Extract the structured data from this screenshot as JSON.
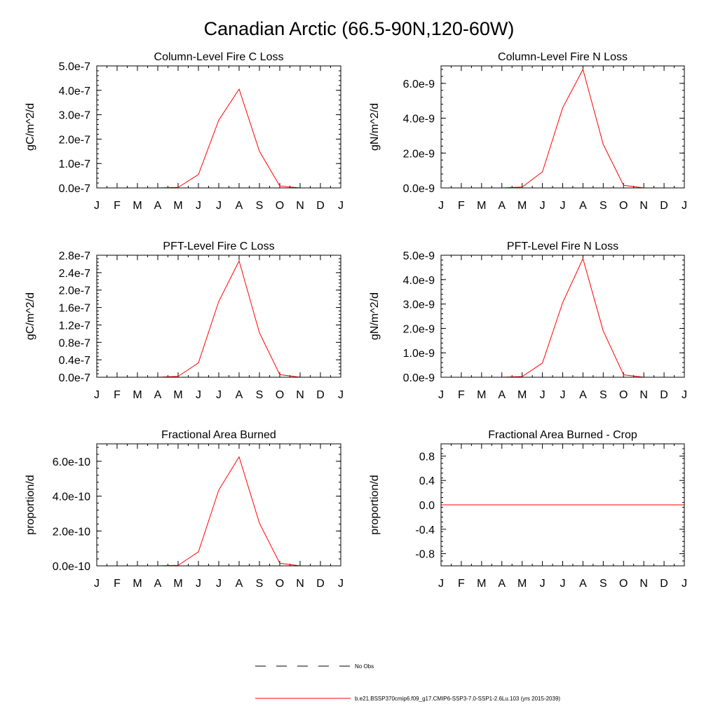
{
  "figure": {
    "title": "Canadian Arctic (66.5-90N,120-60W)"
  },
  "month_labels": [
    "J",
    "F",
    "M",
    "A",
    "M",
    "J",
    "J",
    "A",
    "S",
    "O",
    "N",
    "D",
    "J"
  ],
  "chart_data": [
    {
      "type": "line",
      "title": "Column-Level Fire C Loss",
      "ylabel": "gC/m^2/d",
      "ylim": [
        0,
        5e-07
      ],
      "yticks": [
        0,
        1e-07,
        2e-07,
        3e-07,
        4e-07,
        5e-07
      ],
      "ytick_labels": [
        "0.0e-7",
        "1.0e-7",
        "2.0e-7",
        "3.0e-7",
        "4.0e-7",
        "5.0e-7"
      ],
      "series": [
        {
          "color": "#ff0000",
          "values": [
            0,
            0,
            0,
            0,
            2e-09,
            5.5e-08,
            2.78e-07,
            4.05e-07,
            1.5e-07,
            8e-09,
            0,
            0,
            0
          ]
        }
      ]
    },
    {
      "type": "line",
      "title": "Column-Level Fire N Loss",
      "ylabel": "gN/m^2/d",
      "ylim": [
        0,
        7e-09
      ],
      "yticks": [
        0,
        2e-09,
        4e-09,
        6e-09
      ],
      "ytick_labels": [
        "0.0e-9",
        "2.0e-9",
        "4.0e-9",
        "6.0e-9"
      ],
      "series": [
        {
          "color": "#ff0000",
          "values": [
            0,
            0,
            0,
            0,
            5e-11,
            9.2e-10,
            4.6e-09,
            6.8e-09,
            2.5e-09,
            1.5e-10,
            0,
            0,
            0
          ]
        }
      ]
    },
    {
      "type": "line",
      "title": "PFT-Level Fire C Loss",
      "ylabel": "gC/m^2/d",
      "ylim": [
        0,
        2.8e-07
      ],
      "yticks": [
        0,
        4e-08,
        8e-08,
        1.2e-07,
        1.6e-07,
        2e-07,
        2.4e-07,
        2.8e-07
      ],
      "ytick_labels": [
        "0.0e-7",
        "0.4e-7",
        "0.8e-7",
        "1.2e-7",
        "1.6e-7",
        "2.0e-7",
        "2.4e-7",
        "2.8e-7"
      ],
      "series": [
        {
          "color": "#ff0000",
          "values": [
            0,
            0,
            0,
            0,
            2e-09,
            3.3e-08,
            1.74e-07,
            2.67e-07,
            1.02e-07,
            6e-09,
            0,
            0,
            0
          ]
        }
      ]
    },
    {
      "type": "line",
      "title": "PFT-Level Fire N Loss",
      "ylabel": "gN/m^2/d",
      "ylim": [
        0,
        5e-09
      ],
      "yticks": [
        0,
        1e-09,
        2e-09,
        3e-09,
        4e-09,
        5e-09
      ],
      "ytick_labels": [
        "0.0e-9",
        "1.0e-9",
        "2.0e-9",
        "3.0e-9",
        "4.0e-9",
        "5.0e-9"
      ],
      "series": [
        {
          "color": "#ff0000",
          "values": [
            0,
            0,
            0,
            0,
            3e-11,
            5.8e-10,
            3.06e-09,
            4.86e-09,
            1.9e-09,
            1e-10,
            0,
            0,
            0
          ]
        }
      ]
    },
    {
      "type": "line",
      "title": "Fractional Area Burned",
      "ylabel": "proportion/d",
      "ylim": [
        0,
        7e-10
      ],
      "yticks": [
        0,
        2e-10,
        4e-10,
        6e-10
      ],
      "ytick_labels": [
        "0.0e-10",
        "2.0e-10",
        "4.0e-10",
        "6.0e-10"
      ],
      "series": [
        {
          "color": "#ff0000",
          "values": [
            0,
            0,
            0,
            0,
            3e-12,
            8e-11,
            4.35e-10,
            6.25e-10,
            2.45e-10,
            1.5e-11,
            0,
            0,
            0
          ]
        }
      ]
    },
    {
      "type": "line",
      "title": "Fractional Area Burned - Crop",
      "ylabel": "proportion/d",
      "ylim": [
        -1.0,
        1.0
      ],
      "yticks": [
        -0.8,
        -0.4,
        0.0,
        0.4,
        0.8
      ],
      "ytick_labels": [
        "-0.8",
        "-0.4",
        "0.0",
        "0.4",
        "0.8"
      ],
      "series": [
        {
          "color": "#ff0000",
          "values": [
            0,
            0,
            0,
            0,
            0,
            0,
            0,
            0,
            0,
            0,
            0,
            0,
            0
          ]
        }
      ]
    }
  ],
  "legend": {
    "placement": "bottom-center",
    "items": [
      {
        "label": "No Obs",
        "color": "#000000",
        "style": "dashed"
      },
      {
        "label": "b.e21.BSSP370cmip6.f09_g17.CMIP6-SSP3-7.0-SSP1-2.6Lu.103 (yrs 2015-2039)",
        "color": "#ff0000",
        "style": "solid"
      }
    ]
  }
}
